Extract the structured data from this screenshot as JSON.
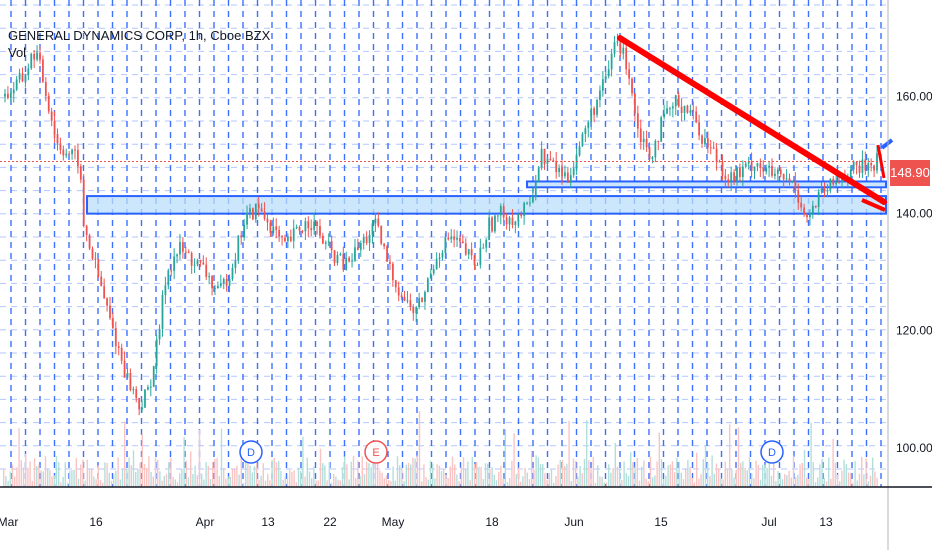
{
  "legend": {
    "symbol": "GENERAL DYNAMICS CORP, 1h, Cboe BZX",
    "volume_label": "Vol"
  },
  "last_price": "148.90",
  "colors": {
    "up": "#26a69a",
    "down": "#ef5350",
    "volume_up": "#b2dfdb",
    "volume_down": "#f8c4c4",
    "grid": "#2962ff",
    "zone_fill": "#bbdefb",
    "zone_stroke": "#2962ff",
    "trendline": "#ff0000",
    "axis_text": "#131722"
  },
  "chart_data": {
    "type": "candlestick",
    "symbol": "GENERAL DYNAMICS CORP",
    "interval": "1h",
    "exchange": "Cboe BZX",
    "y_ticks": [
      100,
      120,
      140,
      160
    ],
    "y_tick_labels": [
      "100.00",
      "120.00",
      "140.00",
      "160.00"
    ],
    "ylim": [
      93.3,
      176.5
    ],
    "x_tick_labels": [
      "Mar",
      "16",
      "Apr",
      "13",
      "22",
      "May",
      "18",
      "Jun",
      "15",
      "Jul",
      "13"
    ],
    "last_price": 148.9,
    "events": [
      {
        "label": "D",
        "type": "dividend"
      },
      {
        "label": "E",
        "type": "earnings"
      },
      {
        "label": "D",
        "type": "dividend"
      }
    ],
    "zones": [
      {
        "name": "support-zone-wide",
        "low": 140,
        "high": 143
      },
      {
        "name": "support-zone-narrow",
        "low": 144.5,
        "high": 145.5
      }
    ],
    "trendline": {
      "from_price": 170,
      "to_price": 142
    },
    "price_path": [
      [
        0.0,
        160
      ],
      [
        0.02,
        163
      ],
      [
        0.035,
        168
      ],
      [
        0.045,
        162
      ],
      [
        0.06,
        152
      ],
      [
        0.075,
        150
      ],
      [
        0.085,
        149
      ],
      [
        0.09,
        138
      ],
      [
        0.1,
        133
      ],
      [
        0.12,
        122
      ],
      [
        0.14,
        112
      ],
      [
        0.155,
        107
      ],
      [
        0.165,
        110
      ],
      [
        0.175,
        118
      ],
      [
        0.185,
        130
      ],
      [
        0.2,
        134
      ],
      [
        0.215,
        132
      ],
      [
        0.23,
        130
      ],
      [
        0.245,
        126
      ],
      [
        0.26,
        131
      ],
      [
        0.275,
        139
      ],
      [
        0.29,
        141
      ],
      [
        0.305,
        138
      ],
      [
        0.32,
        134
      ],
      [
        0.335,
        137
      ],
      [
        0.35,
        139
      ],
      [
        0.37,
        134
      ],
      [
        0.39,
        131
      ],
      [
        0.41,
        135
      ],
      [
        0.425,
        138
      ],
      [
        0.44,
        131
      ],
      [
        0.455,
        126
      ],
      [
        0.47,
        123
      ],
      [
        0.48,
        126
      ],
      [
        0.495,
        133
      ],
      [
        0.51,
        136
      ],
      [
        0.525,
        134
      ],
      [
        0.54,
        131
      ],
      [
        0.555,
        138
      ],
      [
        0.57,
        140
      ],
      [
        0.585,
        139
      ],
      [
        0.6,
        141
      ],
      [
        0.615,
        150
      ],
      [
        0.63,
        148
      ],
      [
        0.645,
        146
      ],
      [
        0.66,
        152
      ],
      [
        0.675,
        158
      ],
      [
        0.69,
        163
      ],
      [
        0.7,
        170
      ],
      [
        0.715,
        165
      ],
      [
        0.725,
        155
      ],
      [
        0.74,
        150
      ],
      [
        0.755,
        156
      ],
      [
        0.77,
        159
      ],
      [
        0.785,
        158
      ],
      [
        0.8,
        153
      ],
      [
        0.815,
        150
      ],
      [
        0.83,
        146
      ],
      [
        0.845,
        147
      ],
      [
        0.86,
        149
      ],
      [
        0.875,
        147
      ],
      [
        0.89,
        146
      ],
      [
        0.905,
        145
      ],
      [
        0.92,
        139
      ],
      [
        0.935,
        143
      ],
      [
        0.95,
        145
      ],
      [
        0.965,
        147
      ],
      [
        0.985,
        148
      ],
      [
        1.0,
        149
      ]
    ]
  }
}
